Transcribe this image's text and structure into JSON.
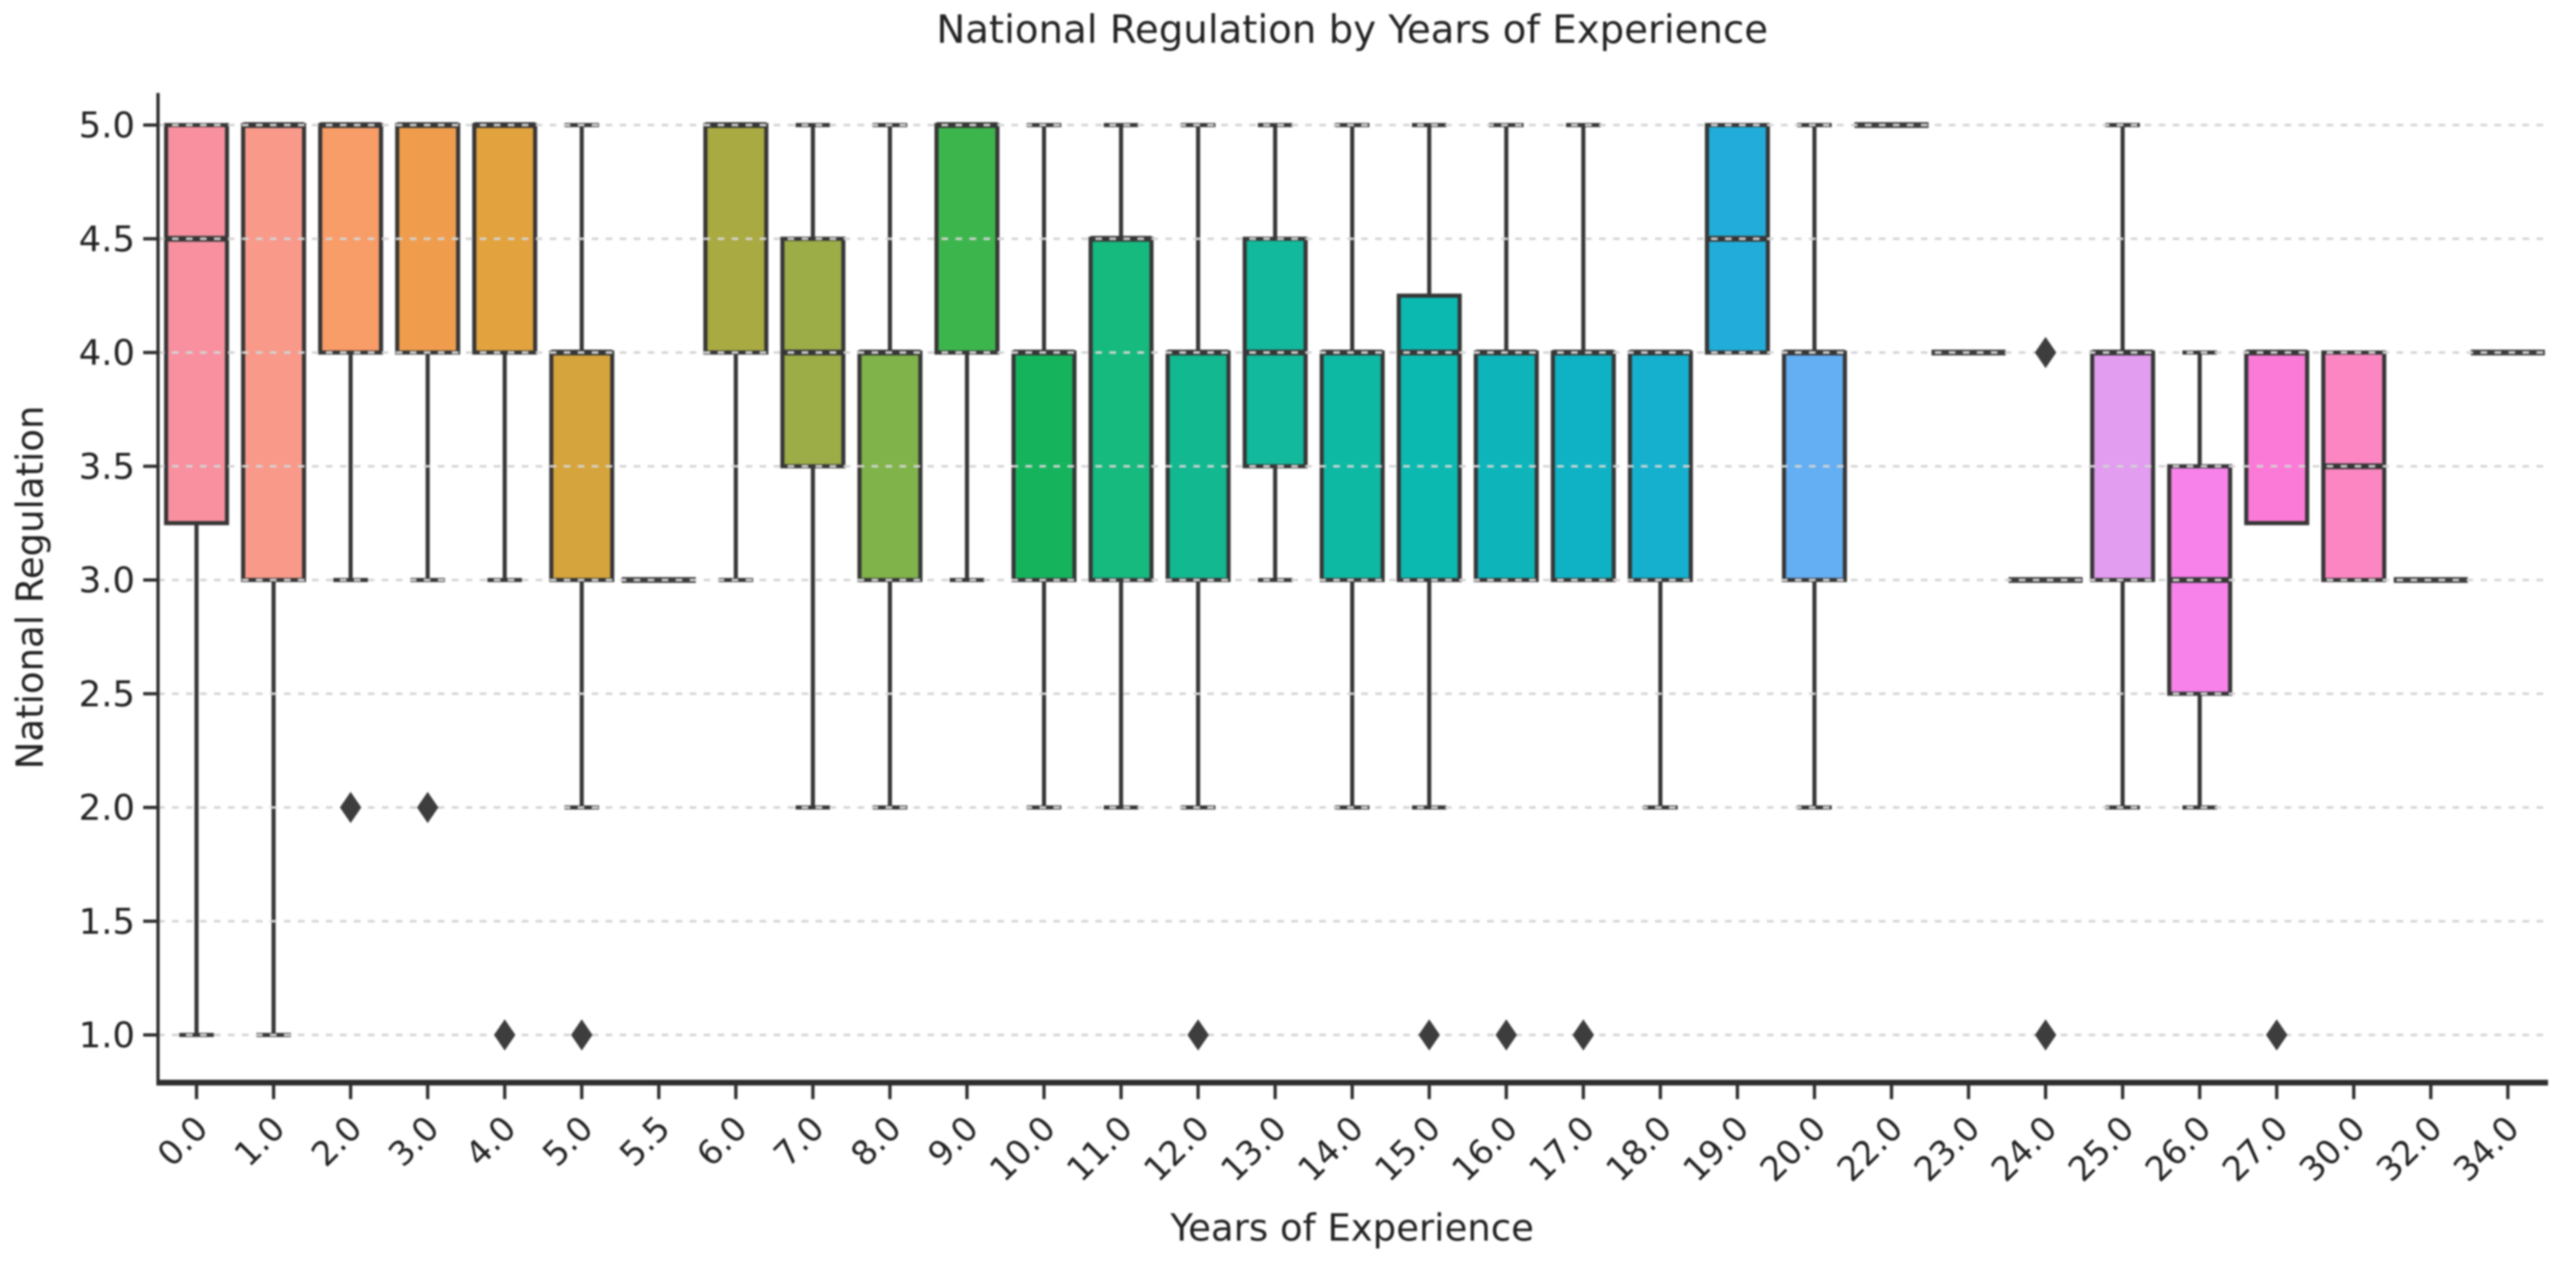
{
  "chart_data": {
    "type": "boxplot",
    "title": "National Regulation by Years of Experience",
    "xlabel": "Years of Experience",
    "ylabel": "National Regulation",
    "ylim": [
      1.0,
      5.0
    ],
    "yticks": [
      5.0,
      4.5,
      4.0,
      3.5,
      3.0,
      2.5,
      2.0,
      1.5,
      1.0
    ],
    "ytick_labels": [
      "5.0",
      "4.5",
      "4.0",
      "3.5",
      "3.0",
      "2.5",
      "2.0",
      "1.5",
      "1.0"
    ],
    "xtick_labels": [
      "0.0",
      "1.0",
      "2.0",
      "3.0",
      "4.0",
      "5.0",
      "5.5",
      "6.0",
      "7.0",
      "8.0",
      "9.0",
      "10.0",
      "11.0",
      "12.0",
      "13.0",
      "14.0",
      "15.0",
      "16.0",
      "17.0",
      "18.0",
      "19.0",
      "20.0",
      "22.0",
      "23.0",
      "24.0",
      "25.0",
      "26.0",
      "27.0",
      "30.0",
      "32.0",
      "34.0"
    ],
    "grid": "horizontal-dashed",
    "legend_position": "none",
    "flier_marker": "thin-diamond",
    "flier_color": "#3d3d3d",
    "box_edge_color": "#363636",
    "boxes": [
      {
        "label": "0.0",
        "color": "#f8909f",
        "whislo": 1.0,
        "q1": 3.25,
        "med": 4.5,
        "q3": 5.0,
        "whishi": 5.0,
        "fliers": []
      },
      {
        "label": "1.0",
        "color": "#f8998a",
        "whislo": 1.0,
        "q1": 3.0,
        "med": 5.0,
        "q3": 5.0,
        "whishi": 5.0,
        "fliers": []
      },
      {
        "label": "2.0",
        "color": "#f89c68",
        "whislo": 3.0,
        "q1": 4.0,
        "med": 5.0,
        "q3": 5.0,
        "whishi": 5.0,
        "fliers": [
          2.0
        ]
      },
      {
        "label": "3.0",
        "color": "#ef9d4d",
        "whislo": 3.0,
        "q1": 4.0,
        "med": 5.0,
        "q3": 5.0,
        "whishi": 5.0,
        "fliers": [
          2.0
        ]
      },
      {
        "label": "4.0",
        "color": "#e2a23e",
        "whislo": 3.0,
        "q1": 4.0,
        "med": 5.0,
        "q3": 5.0,
        "whishi": 5.0,
        "fliers": [
          1.0
        ]
      },
      {
        "label": "5.0",
        "color": "#d6a43c",
        "whislo": 2.0,
        "q1": 3.0,
        "med": 4.0,
        "q3": 4.0,
        "whishi": 5.0,
        "fliers": [
          1.0
        ]
      },
      {
        "label": "5.5",
        "flat": true,
        "value": 3.0,
        "fliers": []
      },
      {
        "label": "6.0",
        "color": "#a9aa42",
        "whislo": 3.0,
        "q1": 4.0,
        "med": 5.0,
        "q3": 5.0,
        "whishi": 5.0,
        "fliers": []
      },
      {
        "label": "7.0",
        "color": "#9cad47",
        "whislo": 2.0,
        "q1": 3.5,
        "med": 4.0,
        "q3": 4.5,
        "whishi": 5.0,
        "fliers": []
      },
      {
        "label": "8.0",
        "color": "#80b34a",
        "whislo": 2.0,
        "q1": 3.0,
        "med": 4.0,
        "q3": 4.0,
        "whishi": 5.0,
        "fliers": []
      },
      {
        "label": "9.0",
        "color": "#3db54d",
        "whislo": 3.0,
        "q1": 4.0,
        "med": 5.0,
        "q3": 5.0,
        "whishi": 5.0,
        "fliers": []
      },
      {
        "label": "10.0",
        "color": "#15b45c",
        "whislo": 2.0,
        "q1": 3.0,
        "med": 4.0,
        "q3": 4.0,
        "whishi": 5.0,
        "fliers": []
      },
      {
        "label": "11.0",
        "color": "#16b97e",
        "whislo": 2.0,
        "q1": 3.0,
        "med": 4.5,
        "q3": 4.5,
        "whishi": 5.0,
        "fliers": []
      },
      {
        "label": "12.0",
        "color": "#12b890",
        "whislo": 2.0,
        "q1": 3.0,
        "med": 4.0,
        "q3": 4.0,
        "whishi": 5.0,
        "fliers": [
          1.0
        ]
      },
      {
        "label": "13.0",
        "color": "#12b99c",
        "whislo": 3.0,
        "q1": 3.5,
        "med": 4.0,
        "q3": 4.5,
        "whishi": 5.0,
        "fliers": []
      },
      {
        "label": "14.0",
        "color": "#0eb9a4",
        "whislo": 2.0,
        "q1": 3.0,
        "med": 4.0,
        "q3": 4.0,
        "whishi": 5.0,
        "fliers": []
      },
      {
        "label": "15.0",
        "color": "#0cb9b0",
        "whislo": 2.0,
        "q1": 3.0,
        "med": 4.0,
        "q3": 4.25,
        "whishi": 5.0,
        "fliers": [
          1.0
        ]
      },
      {
        "label": "16.0",
        "color": "#0db5bb",
        "whislo": 3.0,
        "q1": 3.0,
        "med": 4.0,
        "q3": 4.0,
        "whishi": 5.0,
        "fliers": [
          1.0
        ]
      },
      {
        "label": "17.0",
        "color": "#0fb2c4",
        "whislo": 3.0,
        "q1": 3.0,
        "med": 4.0,
        "q3": 4.0,
        "whishi": 5.0,
        "fliers": [
          1.0
        ]
      },
      {
        "label": "18.0",
        "color": "#14b0cd",
        "whislo": 2.0,
        "q1": 3.0,
        "med": 4.0,
        "q3": 4.0,
        "whishi": 4.0,
        "fliers": []
      },
      {
        "label": "19.0",
        "color": "#22acd9",
        "whislo": 4.0,
        "q1": 4.0,
        "med": 4.5,
        "q3": 5.0,
        "whishi": 5.0,
        "fliers": []
      },
      {
        "label": "20.0",
        "color": "#64aef3",
        "whislo": 2.0,
        "q1": 3.0,
        "med": 4.0,
        "q3": 4.0,
        "whishi": 5.0,
        "fliers": []
      },
      {
        "label": "22.0",
        "flat": true,
        "value": 5.0,
        "fliers": []
      },
      {
        "label": "23.0",
        "flat": true,
        "value": 4.0,
        "fliers": []
      },
      {
        "label": "24.0",
        "flat": true,
        "value": 3.0,
        "fliers": [
          4.0,
          1.0
        ]
      },
      {
        "label": "25.0",
        "color": "#e29df0",
        "whislo": 2.0,
        "q1": 3.0,
        "med": 4.0,
        "q3": 4.0,
        "whishi": 5.0,
        "fliers": []
      },
      {
        "label": "26.0",
        "color": "#f783ea",
        "whislo": 2.0,
        "q1": 2.5,
        "med": 3.0,
        "q3": 3.5,
        "whishi": 4.0,
        "fliers": []
      },
      {
        "label": "27.0",
        "color": "#fb7ad7",
        "whislo": 3.25,
        "q1": 3.25,
        "med": 4.0,
        "q3": 4.0,
        "whishi": 4.0,
        "fliers": [
          1.0
        ]
      },
      {
        "label": "30.0",
        "color": "#fb86c1",
        "whislo": 3.0,
        "q1": 3.0,
        "med": 3.5,
        "q3": 4.0,
        "whishi": 4.0,
        "fliers": []
      },
      {
        "label": "32.0",
        "flat": true,
        "value": 3.0,
        "fliers": []
      },
      {
        "label": "34.0",
        "flat": true,
        "value": 4.0,
        "fliers": []
      }
    ]
  }
}
